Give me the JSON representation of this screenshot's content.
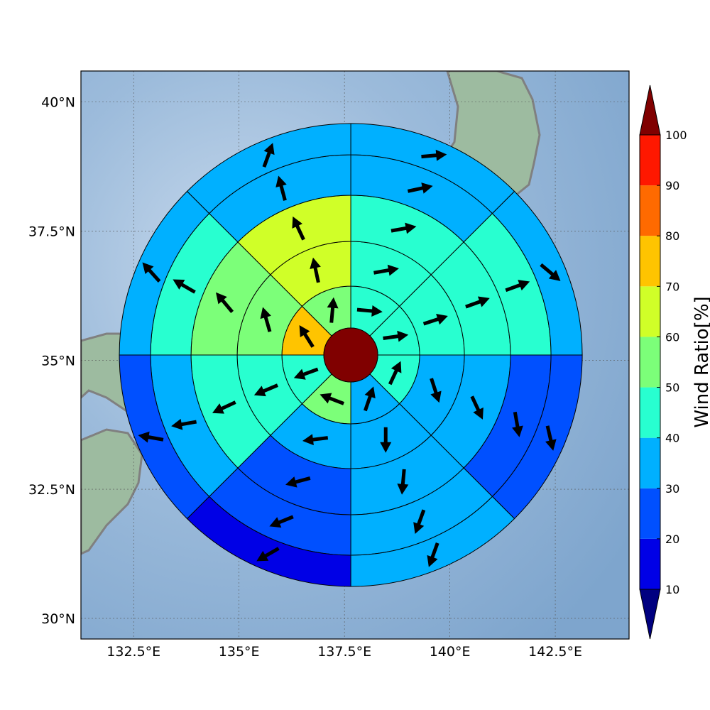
{
  "map": {
    "lat_labels": [
      "40°N",
      "37.5°N",
      "35°N",
      "32.5°N",
      "30°N"
    ],
    "lon_labels": [
      "132.5°E",
      "135°E",
      "137.5°E",
      "140°E",
      "142.5°E"
    ],
    "lat_values": [
      40,
      37.5,
      35,
      32.5,
      30
    ],
    "lon_values": [
      132.5,
      135,
      137.5,
      140,
      142.5
    ],
    "extent": {
      "lon": [
        131.25,
        144.25
      ],
      "lat": [
        29.6,
        40.6
      ]
    },
    "center": {
      "lon": 137.65,
      "lat": 35.1
    },
    "ocean_color": "#8fb1d4",
    "land_color": "#9dbba0",
    "coast_color": "#808080",
    "grid": true
  },
  "colorbar": {
    "label": "Wind Ratio[%]",
    "tick_labels": [
      "10",
      "20",
      "30",
      "40",
      "50",
      "60",
      "70",
      "80",
      "90",
      "100"
    ],
    "ticks": [
      10,
      20,
      30,
      40,
      50,
      60,
      70,
      80,
      90,
      100
    ],
    "bins": [
      {
        "min": 0,
        "max": 10,
        "color": "#000080"
      },
      {
        "min": 10,
        "max": 20,
        "color": "#0000e6"
      },
      {
        "min": 20,
        "max": 30,
        "color": "#0050ff"
      },
      {
        "min": 30,
        "max": 40,
        "color": "#00b0ff"
      },
      {
        "min": 40,
        "max": 50,
        "color": "#28ffd0"
      },
      {
        "min": 50,
        "max": 60,
        "color": "#7cff79"
      },
      {
        "min": 60,
        "max": 70,
        "color": "#d0ff28"
      },
      {
        "min": 70,
        "max": 80,
        "color": "#ffc400"
      },
      {
        "min": 80,
        "max": 90,
        "color": "#ff6a00"
      },
      {
        "min": 90,
        "max": 100,
        "color": "#ff1800"
      },
      {
        "min": 100,
        "max": 110,
        "color": "#800000"
      }
    ]
  },
  "chart_data": {
    "type": "heatmap",
    "sector_count": 8,
    "ring_count": 5,
    "center_value": 100,
    "rings": [
      {
        "values": [
          45,
          45,
          45,
          35,
          55,
          45,
          75,
          55
        ],
        "arrows": [
          95,
          82,
          25,
          19,
          291,
          250,
          328,
          5
        ]
      },
      {
        "values": [
          45,
          45,
          35,
          35,
          35,
          45,
          55,
          65
        ],
        "arrows": [
          80,
          72,
          162,
          180,
          263,
          247,
          344,
          348
        ]
      },
      {
        "values": [
          45,
          45,
          35,
          35,
          25,
          45,
          55,
          65
        ],
        "arrows": [
          80,
          70,
          155,
          185,
          255,
          245,
          320,
          335
        ]
      },
      {
        "values": [
          35,
          45,
          25,
          35,
          25,
          35,
          45,
          35
        ],
        "arrows": [
          78,
          70,
          170,
          200,
          248,
          260,
          300,
          345
        ]
      },
      {
        "values": [
          35,
          35,
          25,
          35,
          15,
          25,
          35,
          35
        ],
        "arrows": [
          85,
          130,
          167,
          200,
          240,
          280,
          318,
          20
        ]
      }
    ]
  }
}
